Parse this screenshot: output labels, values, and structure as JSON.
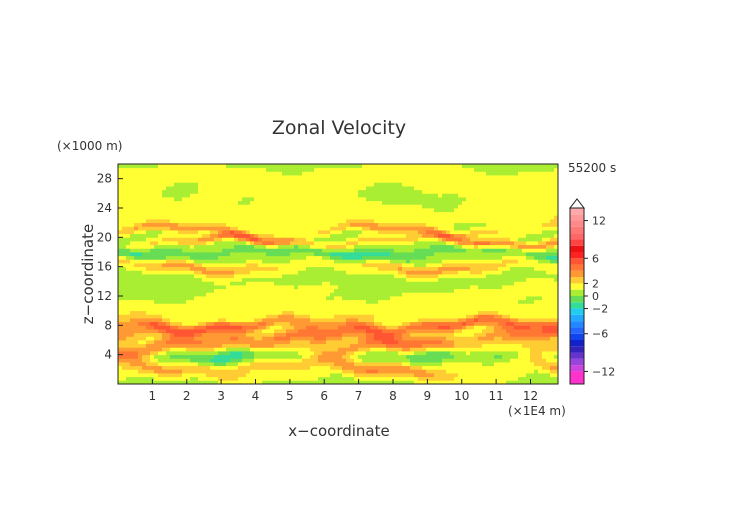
{
  "chart_data": {
    "type": "heatmap",
    "title": "Zonal Velocity",
    "xlabel": "x−coordinate",
    "ylabel": "z−coordinate",
    "x_unit": "(×1E4 m)",
    "y_unit": "(×1000 m)",
    "time_label": "55200 s",
    "xlim": [
      0,
      12.8
    ],
    "ylim": [
      0,
      30
    ],
    "x_ticks": [
      "1",
      "2",
      "3",
      "4",
      "5",
      "6",
      "7",
      "8",
      "9",
      "10",
      "11",
      "12"
    ],
    "y_ticks": [
      "4",
      "8",
      "12",
      "16",
      "20",
      "24",
      "28"
    ],
    "colorbar": {
      "tick_labels": [
        "12",
        "6",
        "2",
        "0",
        "−2",
        "−6",
        "−12"
      ],
      "min": -14,
      "max": 14,
      "bins": [
        {
          "from": -14,
          "to": -12,
          "color": "#ff33cc"
        },
        {
          "from": -12,
          "to": -11,
          "color": "#cc44dd"
        },
        {
          "from": -11,
          "to": -10,
          "color": "#9944dd"
        },
        {
          "from": -10,
          "to": -9,
          "color": "#6633cc"
        },
        {
          "from": -9,
          "to": -8,
          "color": "#3322bb"
        },
        {
          "from": -8,
          "to": -7,
          "color": "#1122cc"
        },
        {
          "from": -7,
          "to": -6,
          "color": "#1144ee"
        },
        {
          "from": -6,
          "to": -5,
          "color": "#2266ff"
        },
        {
          "from": -5,
          "to": -4,
          "color": "#2288ff"
        },
        {
          "from": -4,
          "to": -3,
          "color": "#22aaff"
        },
        {
          "from": -3,
          "to": -2,
          "color": "#22ccee"
        },
        {
          "from": -2,
          "to": -1,
          "color": "#33dd99"
        },
        {
          "from": -1,
          "to": 0,
          "color": "#66dd55"
        },
        {
          "from": 0,
          "to": 1,
          "color": "#aaee33"
        },
        {
          "from": 1,
          "to": 2,
          "color": "#ffff33"
        },
        {
          "from": 2,
          "to": 3,
          "color": "#ffcc33"
        },
        {
          "from": 3,
          "to": 4,
          "color": "#ff9933"
        },
        {
          "from": 4,
          "to": 5,
          "color": "#ff7733"
        },
        {
          "from": 5,
          "to": 6,
          "color": "#ff5533"
        },
        {
          "from": 6,
          "to": 7,
          "color": "#ff2222"
        },
        {
          "from": 7,
          "to": 8,
          "color": "#ee1111"
        },
        {
          "from": 8,
          "to": 9,
          "color": "#ff4444"
        },
        {
          "from": 9,
          "to": 10,
          "color": "#ff6666"
        },
        {
          "from": 10,
          "to": 11,
          "color": "#ff7777"
        },
        {
          "from": 11,
          "to": 12,
          "color": "#ff8888"
        },
        {
          "from": 12,
          "to": 13,
          "color": "#ff9999"
        },
        {
          "from": 13,
          "to": 14,
          "color": "#ffaaaa"
        }
      ]
    },
    "bands": [
      {
        "z": 1.5,
        "value": 1.5,
        "thickness": 1.0
      },
      {
        "z": 2.5,
        "value": 3.0,
        "thickness": 1.0
      },
      {
        "z": 3.5,
        "value": -2.0,
        "thickness": 1.2
      },
      {
        "z": 5.0,
        "value": 3.0,
        "thickness": 1.0
      },
      {
        "z": 6.5,
        "value": 3.5,
        "thickness": 1.2
      },
      {
        "z": 8.0,
        "value": 4.0,
        "thickness": 0.8
      },
      {
        "z": 10.0,
        "value": 1.2,
        "thickness": 1.5
      },
      {
        "z": 13.0,
        "value": 0.5,
        "thickness": 2.0
      },
      {
        "z": 16.0,
        "value": 2.5,
        "thickness": 0.8
      },
      {
        "z": 18.0,
        "value": -2.0,
        "thickness": 0.8
      },
      {
        "z": 19.5,
        "value": 3.5,
        "thickness": 0.6
      },
      {
        "z": 21.0,
        "value": 2.5,
        "thickness": 0.6
      },
      {
        "z": 23.0,
        "value": 1.2,
        "thickness": 2.0
      },
      {
        "z": 26.0,
        "value": 0.4,
        "thickness": 2.0
      },
      {
        "z": 28.5,
        "value": 1.0,
        "thickness": 1.5
      }
    ]
  }
}
